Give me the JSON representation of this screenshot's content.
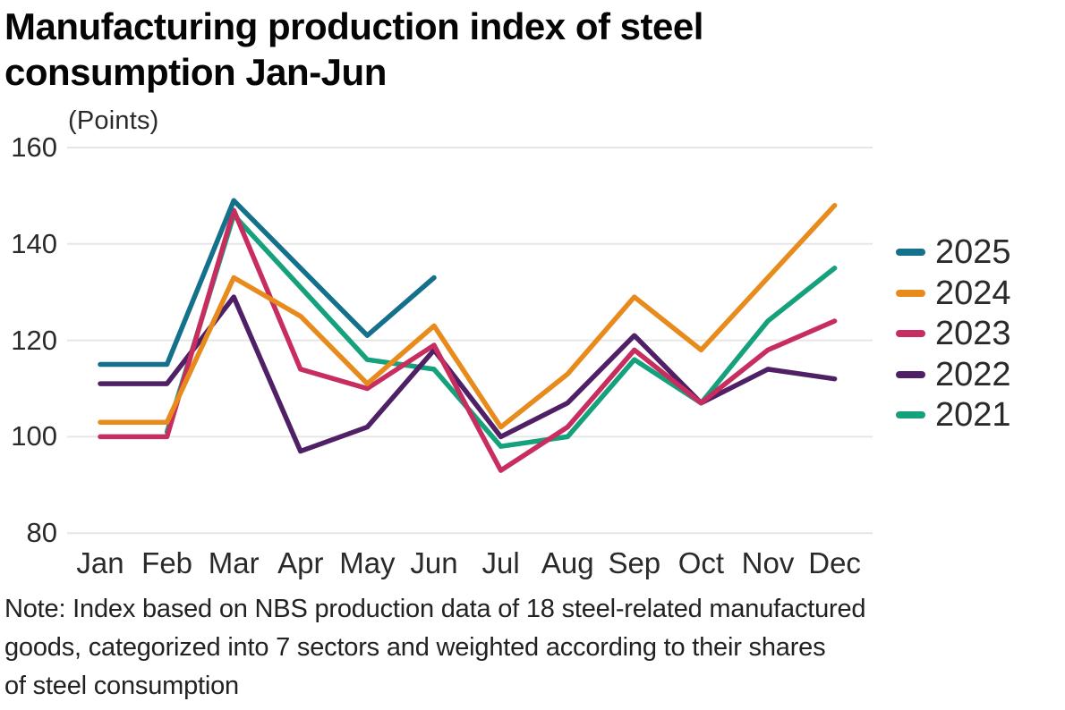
{
  "chart_data": {
    "type": "line",
    "title": "Manufacturing production index of steel consumption Jan-Jun",
    "title_lines": [
      "Manufacturing production index of steel",
      "consumption Jan-Jun"
    ],
    "unit_label": "(Points)",
    "x": [
      "Jan",
      "Feb",
      "Mar",
      "Apr",
      "May",
      "Jun",
      "Jul",
      "Aug",
      "Sep",
      "Oct",
      "Nov",
      "Dec"
    ],
    "yticks": [
      160,
      140,
      120,
      100,
      80
    ],
    "ylim": [
      80,
      160
    ],
    "grid": "horizontal-only",
    "gridline_color": "#e6e6e6",
    "legend_position": "right",
    "series": [
      {
        "name": "2025",
        "color": "#14718c",
        "values": [
          115,
          115,
          149,
          135,
          121,
          133,
          null,
          null,
          null,
          null,
          null,
          null
        ]
      },
      {
        "name": "2024",
        "color": "#e88b1d",
        "values": [
          103,
          103,
          133,
          125,
          111,
          123,
          102,
          113,
          129,
          118,
          133,
          148
        ]
      },
      {
        "name": "2023",
        "color": "#c72e5f",
        "values": [
          100,
          100,
          147,
          114,
          110,
          119,
          93,
          102,
          118,
          107,
          118,
          124
        ]
      },
      {
        "name": "2022",
        "color": "#4f2065",
        "values": [
          111,
          111,
          129,
          97,
          102,
          118,
          100,
          107,
          121,
          107,
          114,
          112
        ]
      },
      {
        "name": "2021",
        "color": "#15a17c",
        "values": [
          null,
          101,
          146,
          131,
          116,
          114,
          98,
          100,
          116,
          107,
          124,
          135
        ]
      }
    ],
    "note_lines": [
      "Note: Index based on NBS production data of 18 steel-related manufactured",
      "goods, categorized into 7 sectors and weighted according to their shares",
      "of steel consumption"
    ]
  }
}
